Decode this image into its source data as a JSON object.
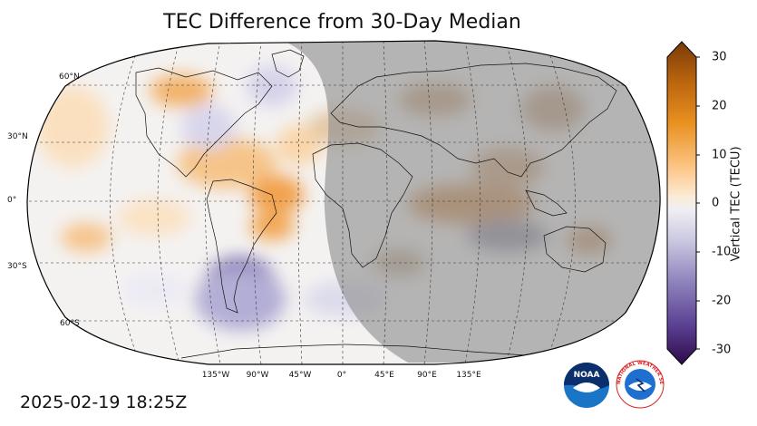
{
  "title": "TEC Difference from 30-Day Median",
  "timestamp": "2025-02-19 18:25Z",
  "lat_labels": [
    "60°N",
    "30°N",
    "0°",
    "30°S",
    "60°S"
  ],
  "lon_labels": [
    "135°W",
    "90°W",
    "45°W",
    "0°",
    "45°E",
    "90°E",
    "135°E"
  ],
  "colorbar": {
    "label": "Vertical TEC (TECU)",
    "ticks": [
      "30",
      "20",
      "10",
      "0",
      "-10",
      "-20",
      "-30"
    ],
    "range": [
      -30,
      30
    ],
    "colors": [
      "#3b0f4e",
      "#6a5aa5",
      "#b9b5d9",
      "#f2f2f2",
      "#fbd8a8",
      "#e8901f",
      "#7a3b08"
    ]
  },
  "logos": [
    {
      "name": "noaa",
      "text": "NOAA"
    },
    {
      "name": "nws",
      "text": "NATIONAL WEATHER SERVICE"
    }
  ],
  "colors": {
    "night_shade": "#a7a7a7",
    "positive": "#f0a750",
    "negative": "#7a6ab1"
  }
}
